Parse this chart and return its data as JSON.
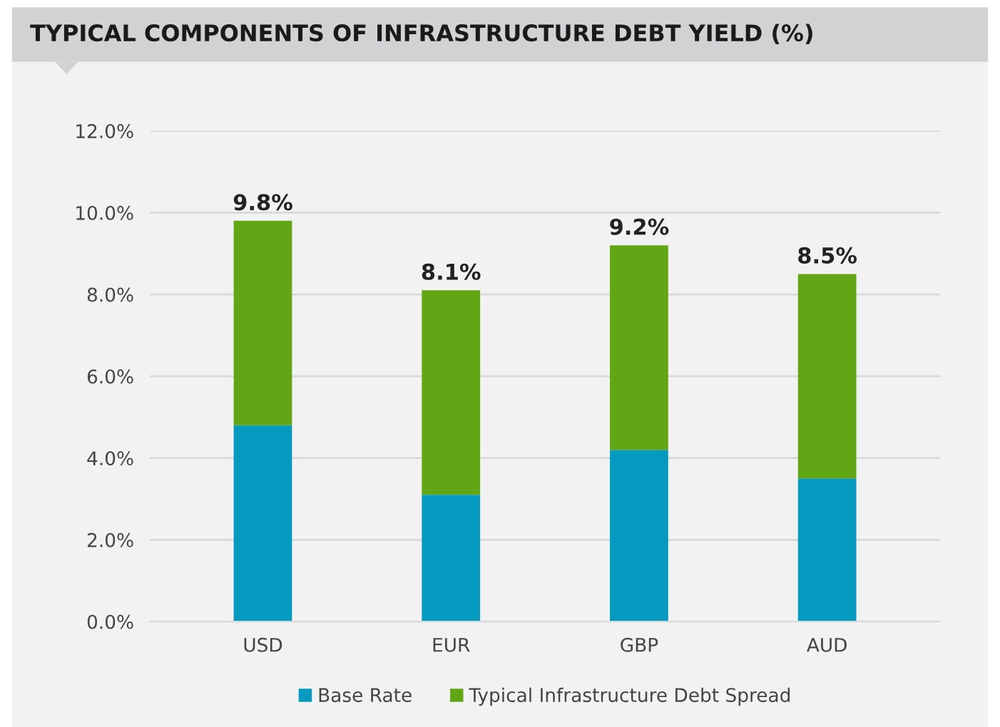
{
  "chart_data": {
    "type": "bar",
    "title": "TYPICAL COMPONENTS OF INFRASTRUCTURE DEBT YIELD (%)",
    "stacked": true,
    "categories": [
      "USD",
      "EUR",
      "GBP",
      "AUD"
    ],
    "series": [
      {
        "name": "Base Rate",
        "color": "#069ac1",
        "values": [
          4.8,
          3.1,
          4.2,
          3.5
        ]
      },
      {
        "name": "Typical Infrastructure Debt Spread",
        "color": "#62a515",
        "values": [
          5.0,
          5.0,
          5.0,
          5.0
        ]
      }
    ],
    "totals": [
      "9.8%",
      "8.1%",
      "9.2%",
      "8.5%"
    ],
    "ylim": [
      0,
      12
    ],
    "yticks": [
      {
        "value": 0,
        "label": "0.0%"
      },
      {
        "value": 2,
        "label": "2.0%"
      },
      {
        "value": 4,
        "label": "4.0%"
      },
      {
        "value": 6,
        "label": "6.0%"
      },
      {
        "value": 8,
        "label": "8.0%"
      },
      {
        "value": 10,
        "label": "10.0%"
      },
      {
        "value": 12,
        "label": "12.0%"
      }
    ],
    "grid": "y",
    "legend": "bottom"
  }
}
